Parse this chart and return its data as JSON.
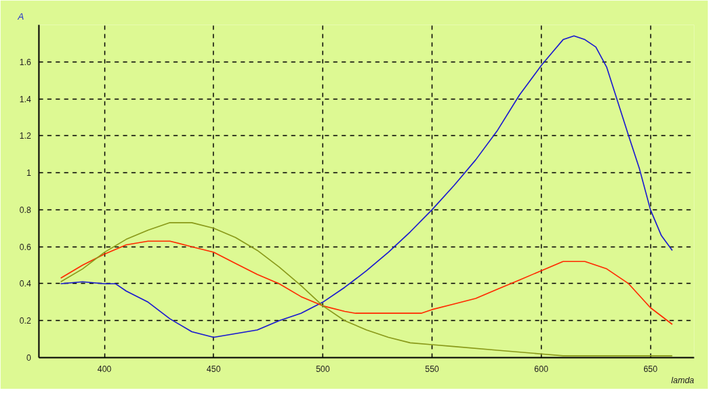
{
  "chart_data": {
    "type": "line",
    "ylabel": "A",
    "xlabel": "lamda",
    "xlim": [
      370,
      670
    ],
    "ylim": [
      0,
      1.8
    ],
    "xticks": [
      400,
      450,
      500,
      550,
      600,
      650
    ],
    "yticks": [
      0,
      0.2,
      0.4,
      0.6,
      0.8,
      1,
      1.2,
      1.4,
      1.6,
      {
        "value": 1.8,
        "label": null
      }
    ],
    "grid": true,
    "line_style": "solid",
    "marker": "none",
    "series": [
      {
        "color": "#1a1ad0",
        "x": [
          380,
          390,
          400,
          405,
          410,
          420,
          430,
          440,
          450,
          460,
          470,
          480,
          490,
          500,
          510,
          520,
          530,
          540,
          550,
          560,
          570,
          580,
          590,
          600,
          605,
          610,
          615,
          620,
          625,
          630,
          640,
          645,
          650,
          655,
          660
        ],
        "values": [
          0.4,
          0.41,
          0.4,
          0.4,
          0.36,
          0.3,
          0.21,
          0.14,
          0.11,
          0.13,
          0.15,
          0.2,
          0.24,
          0.3,
          0.38,
          0.47,
          0.57,
          0.68,
          0.8,
          0.93,
          1.07,
          1.23,
          1.42,
          1.58,
          1.65,
          1.72,
          1.74,
          1.72,
          1.68,
          1.57,
          1.2,
          1.02,
          0.8,
          0.66,
          0.58
        ]
      },
      {
        "color": "#ff2a00",
        "x": [
          380,
          390,
          400,
          410,
          420,
          430,
          440,
          450,
          460,
          470,
          480,
          490,
          500,
          510,
          515,
          530,
          545,
          550,
          560,
          570,
          580,
          590,
          600,
          610,
          620,
          630,
          640,
          650,
          660
        ],
        "values": [
          0.43,
          0.5,
          0.56,
          0.61,
          0.63,
          0.63,
          0.6,
          0.57,
          0.51,
          0.45,
          0.4,
          0.33,
          0.28,
          0.25,
          0.24,
          0.24,
          0.24,
          0.26,
          0.29,
          0.32,
          0.37,
          0.42,
          0.47,
          0.52,
          0.52,
          0.48,
          0.4,
          0.27,
          0.18
        ]
      },
      {
        "color": "#8a9a1a",
        "x": [
          380,
          390,
          400,
          410,
          420,
          430,
          440,
          450,
          460,
          470,
          480,
          490,
          500,
          510,
          520,
          530,
          540,
          550,
          560,
          580,
          600,
          610,
          660
        ],
        "values": [
          0.41,
          0.48,
          0.57,
          0.64,
          0.69,
          0.73,
          0.73,
          0.7,
          0.65,
          0.58,
          0.49,
          0.39,
          0.28,
          0.2,
          0.15,
          0.11,
          0.08,
          0.07,
          0.06,
          0.04,
          0.02,
          0.01,
          0.01
        ]
      }
    ]
  }
}
